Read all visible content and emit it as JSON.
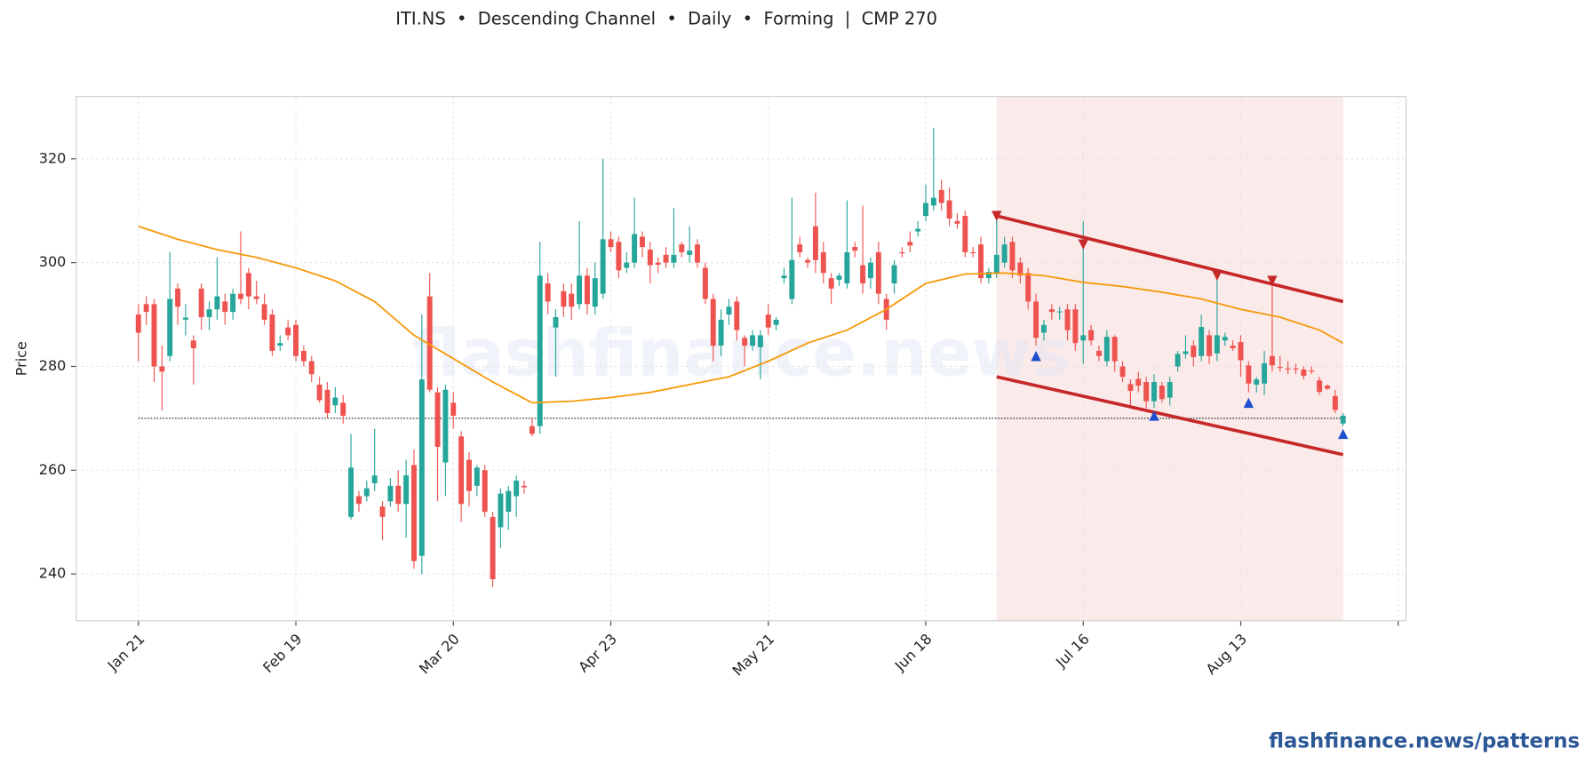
{
  "chart_data": {
    "type": "candlestick",
    "title": "ITI.NS  •  Descending Channel  •  Daily  •  Forming  |  CMP 270",
    "ylabel": "Price",
    "watermark": "flashfinance.news",
    "footer": "flashfinance.news/patterns",
    "xlim": [
      -7.9,
      161
    ],
    "xticks": [
      {
        "value": 0,
        "label": "Jan 21"
      },
      {
        "value": 20,
        "label": "Feb 19"
      },
      {
        "value": 40,
        "label": "Mar 20"
      },
      {
        "value": 60,
        "label": "Apr 23"
      },
      {
        "value": 80,
        "label": "May 21"
      },
      {
        "value": 100,
        "label": "Jun 18"
      },
      {
        "value": 120,
        "label": "Jul 16"
      },
      {
        "value": 140,
        "label": "Aug 13"
      },
      160
    ],
    "ylim": [
      231,
      332
    ],
    "yticks": [
      240,
      260,
      280,
      300,
      320
    ],
    "grid": true,
    "up_color": "#26a69a",
    "down_color": "#ef5350",
    "ohlc": [
      [
        290,
        292,
        281,
        286.5
      ],
      [
        292,
        293.5,
        288,
        290.5
      ],
      [
        292,
        293,
        277,
        280
      ],
      [
        280,
        284,
        271.5,
        279
      ],
      [
        282,
        302,
        281,
        293
      ],
      [
        295,
        296,
        288,
        291.5
      ],
      [
        289,
        292,
        286,
        289.4
      ],
      [
        285,
        286,
        276.5,
        283.5
      ],
      [
        295,
        296,
        287,
        289.5
      ],
      [
        289.5,
        292.5,
        287,
        291
      ],
      [
        291,
        301,
        289,
        293.5
      ],
      [
        292.5,
        294,
        288,
        290.5
      ],
      [
        290.5,
        295,
        289,
        294
      ],
      [
        294,
        306,
        292,
        293
      ],
      [
        298,
        299,
        291,
        293.5
      ],
      [
        293.5,
        296.5,
        292,
        293
      ],
      [
        292,
        294,
        288,
        289
      ],
      [
        290,
        291,
        282,
        283
      ],
      [
        284,
        286,
        283,
        284.5
      ],
      [
        287.5,
        289,
        285,
        286
      ],
      [
        288,
        289,
        281,
        282
      ],
      [
        283,
        284,
        280,
        281
      ],
      [
        281,
        282,
        277,
        278.5
      ],
      [
        276.5,
        278,
        273,
        273.5
      ],
      [
        275.5,
        277,
        270,
        271
      ],
      [
        272.5,
        276,
        271,
        274
      ],
      [
        273,
        274.5,
        269,
        270.5
      ],
      [
        251,
        267,
        250.5,
        260.5
      ],
      [
        255,
        256,
        252,
        253.5
      ],
      [
        255,
        258,
        254,
        256.5
      ],
      [
        257.5,
        268,
        256,
        259
      ],
      [
        253,
        254,
        246.5,
        251
      ],
      [
        254,
        258.5,
        253,
        257
      ],
      [
        257,
        260,
        252,
        253.5
      ],
      [
        253.5,
        262,
        247,
        259
      ],
      [
        261,
        264,
        241,
        242.5
      ],
      [
        243.5,
        290,
        240,
        277.5
      ],
      [
        293.5,
        298,
        275,
        275.5
      ],
      [
        275,
        276,
        254,
        264.5
      ],
      [
        261.5,
        276.5,
        255,
        275.5
      ],
      [
        273,
        275,
        268,
        270.5
      ],
      [
        266.5,
        267.5,
        250,
        253.5
      ],
      [
        262,
        263.5,
        253,
        256
      ],
      [
        257,
        261,
        255,
        260.5
      ],
      [
        260,
        261,
        251,
        252
      ],
      [
        251,
        252,
        237.5,
        239
      ],
      [
        249,
        256.5,
        245,
        255.5
      ],
      [
        252,
        257,
        248.5,
        256
      ],
      [
        255,
        259,
        251,
        258
      ],
      [
        257,
        258,
        255.5,
        256.7
      ],
      [
        268.5,
        270,
        266.5,
        267
      ],
      [
        268.5,
        304,
        267,
        297.5
      ],
      [
        296,
        298,
        290,
        292.5
      ],
      [
        287.5,
        291,
        278,
        289.5
      ],
      [
        294.5,
        296,
        289.5,
        291.5
      ],
      [
        294,
        296,
        289,
        291.5
      ],
      [
        292,
        308,
        291,
        297.5
      ],
      [
        297.5,
        299,
        290,
        292
      ],
      [
        291.5,
        300,
        290,
        297
      ],
      [
        294,
        320,
        293,
        304.5
      ],
      [
        304.5,
        306,
        302,
        303
      ],
      [
        304,
        305,
        297,
        298.5
      ],
      [
        299,
        302,
        298,
        300
      ],
      [
        300,
        312.5,
        299,
        305.5
      ],
      [
        305,
        306,
        301,
        303
      ],
      [
        302.5,
        304,
        296,
        299.5
      ],
      [
        300,
        301,
        298,
        299.6
      ],
      [
        301.5,
        303,
        299,
        300
      ],
      [
        300,
        310.5,
        299,
        301.5
      ],
      [
        303.5,
        304,
        301,
        302
      ],
      [
        301.5,
        307,
        300,
        302.3
      ],
      [
        303.5,
        304.5,
        299,
        300
      ],
      [
        299,
        300,
        292,
        293
      ],
      [
        293,
        294,
        281,
        284
      ],
      [
        284,
        291,
        282,
        289
      ],
      [
        290,
        293,
        288,
        291.5
      ],
      [
        292.5,
        293.5,
        285,
        287
      ],
      [
        285.5,
        286,
        280,
        284
      ],
      [
        284,
        287,
        283,
        286
      ],
      [
        283.7,
        287,
        277.5,
        286
      ],
      [
        290,
        292,
        286,
        287.5
      ],
      [
        288,
        289.5,
        287,
        289
      ],
      [
        297,
        299,
        296,
        297.5
      ],
      [
        293,
        312.5,
        292,
        300.5
      ],
      [
        303.5,
        305,
        301,
        302
      ],
      [
        300.5,
        301,
        299,
        300
      ],
      [
        307,
        313.5,
        298,
        300.5
      ],
      [
        302,
        304,
        296,
        298
      ],
      [
        297,
        298,
        292,
        295
      ],
      [
        296.7,
        298,
        295.5,
        297.5
      ],
      [
        296,
        312,
        295,
        302
      ],
      [
        303,
        304,
        301,
        302.3
      ],
      [
        299.5,
        311,
        294,
        296
      ],
      [
        297,
        301,
        295,
        300
      ],
      [
        302,
        304,
        292,
        294
      ],
      [
        293,
        294,
        287,
        289
      ],
      [
        296,
        300.5,
        294,
        299.5
      ],
      [
        302,
        303,
        301,
        301.8
      ],
      [
        304,
        306,
        302,
        303.3
      ],
      [
        306,
        308,
        305,
        306.5
      ],
      [
        309,
        315,
        308,
        311.5
      ],
      [
        311,
        326,
        310,
        312.5
      ],
      [
        314,
        316,
        310,
        311.5
      ],
      [
        312,
        314.5,
        307,
        308.5
      ],
      [
        308,
        309.5,
        306.5,
        307.5
      ],
      [
        309,
        310,
        301,
        302
      ],
      [
        302,
        303,
        301,
        301.8
      ],
      [
        303.5,
        305,
        296,
        297
      ],
      [
        297,
        299,
        296,
        298.2
      ],
      [
        298,
        310,
        297,
        301.5
      ],
      [
        300,
        305,
        299,
        303.5
      ],
      [
        304,
        305,
        297,
        298.5
      ],
      [
        300,
        301,
        296,
        297.5
      ],
      [
        298,
        299,
        291,
        292.5
      ],
      [
        292.5,
        294,
        284,
        285.5
      ],
      [
        286.5,
        289,
        285,
        288
      ],
      [
        291,
        292,
        289,
        290.5
      ],
      [
        290.4,
        291.5,
        289,
        290.6
      ],
      [
        291,
        292,
        285,
        287
      ],
      [
        291,
        292,
        283,
        284.5
      ],
      [
        285,
        308,
        280.5,
        286
      ],
      [
        287,
        288,
        284,
        285
      ],
      [
        283,
        284,
        281,
        282
      ],
      [
        281,
        287,
        280,
        285.7
      ],
      [
        285.7,
        286,
        279,
        281
      ],
      [
        280,
        281,
        277,
        278
      ],
      [
        276.6,
        277.5,
        272,
        275.3
      ],
      [
        277.6,
        279,
        275,
        276.3
      ],
      [
        277,
        278,
        272,
        273.3
      ],
      [
        273.3,
        278.5,
        272,
        277
      ],
      [
        276.3,
        277,
        273,
        273.7
      ],
      [
        274,
        278,
        272.5,
        277
      ],
      [
        280,
        283,
        279,
        282.4
      ],
      [
        282.4,
        286,
        281.5,
        282.9
      ],
      [
        284,
        285,
        280,
        281.8
      ],
      [
        282,
        290,
        281,
        287.6
      ],
      [
        286,
        287,
        280.5,
        282
      ],
      [
        282.5,
        298,
        281,
        286
      ],
      [
        285,
        286.5,
        284,
        285.7
      ],
      [
        284,
        285,
        283,
        283.5
      ],
      [
        284.7,
        286,
        278,
        281.2
      ],
      [
        280.2,
        281,
        275,
        276.7
      ],
      [
        276.5,
        278,
        275,
        277.5
      ],
      [
        276.7,
        283,
        274.5,
        280.6
      ],
      [
        282,
        297,
        279,
        280.2
      ],
      [
        279.9,
        282,
        279,
        279.8
      ],
      [
        279.6,
        281,
        278.5,
        279.4
      ],
      [
        279.6,
        280.5,
        278.5,
        279.4
      ],
      [
        279.4,
        280,
        277.5,
        278.2
      ],
      [
        279.2,
        280,
        278.5,
        279
      ],
      [
        277.3,
        278,
        274.5,
        275.1
      ],
      [
        276.3,
        276.5,
        275.5,
        275.7
      ],
      [
        274.3,
        275.5,
        271,
        271.6
      ],
      [
        269,
        271,
        268.5,
        270.5
      ]
    ],
    "ma": {
      "color": "#f59a0b",
      "x": [
        0,
        5,
        10,
        15,
        20,
        25,
        30,
        35,
        40,
        45,
        50,
        55,
        60,
        65,
        70,
        75,
        80,
        85,
        90,
        95,
        100,
        105,
        110,
        115,
        120,
        125,
        130,
        135,
        140,
        145,
        150,
        153
      ],
      "values": [
        307,
        304.5,
        302.5,
        301,
        299,
        296.5,
        292.5,
        286,
        281.5,
        277,
        273,
        273.3,
        274,
        275,
        276.5,
        278,
        281,
        284.5,
        287,
        291,
        296,
        297.8,
        298,
        297.5,
        296.2,
        295.4,
        294.3,
        293,
        291,
        289.5,
        287,
        284.5
      ]
    },
    "zone": {
      "color": "#fbeaea",
      "x": [
        109,
        153
      ]
    },
    "cmp_line": 270,
    "channel": {
      "color": "#c62828",
      "upper": {
        "x": [
          109,
          153
        ],
        "y": [
          309,
          292.5
        ]
      },
      "lower": {
        "x": [
          109,
          153
        ],
        "y": [
          278,
          263
        ]
      }
    },
    "peaks": {
      "color": "#c62828",
      "x": [
        109,
        120,
        137,
        144
      ],
      "values": [
        309,
        303.5,
        297.5,
        296.5
      ]
    },
    "troughs": {
      "color": "#1f4fd1",
      "x": [
        114,
        129,
        141,
        153
      ],
      "values": [
        282,
        270.5,
        273,
        267
      ]
    }
  }
}
